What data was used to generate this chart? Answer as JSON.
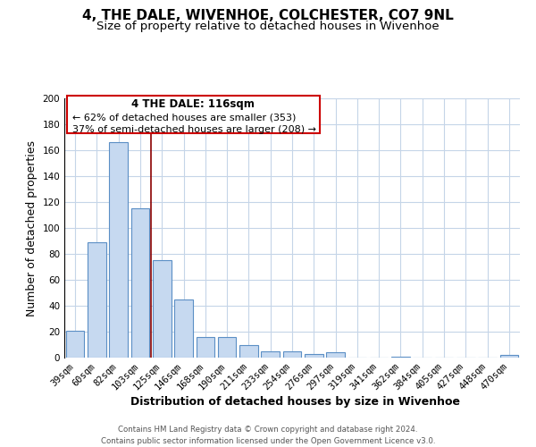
{
  "title": "4, THE DALE, WIVENHOE, COLCHESTER, CO7 9NL",
  "subtitle": "Size of property relative to detached houses in Wivenhoe",
  "xlabel": "Distribution of detached houses by size in Wivenhoe",
  "ylabel": "Number of detached properties",
  "bar_labels": [
    "39sqm",
    "60sqm",
    "82sqm",
    "103sqm",
    "125sqm",
    "146sqm",
    "168sqm",
    "190sqm",
    "211sqm",
    "233sqm",
    "254sqm",
    "276sqm",
    "297sqm",
    "319sqm",
    "341sqm",
    "362sqm",
    "384sqm",
    "405sqm",
    "427sqm",
    "448sqm",
    "470sqm"
  ],
  "bar_values": [
    21,
    89,
    166,
    115,
    75,
    45,
    16,
    16,
    10,
    5,
    5,
    3,
    4,
    0,
    0,
    1,
    0,
    0,
    0,
    0,
    2
  ],
  "bar_color": "#c6d9f0",
  "bar_edge_color": "#5b8fc5",
  "annotation_text1": "4 THE DALE: 116sqm",
  "annotation_text2": "← 62% of detached houses are smaller (353)",
  "annotation_text3": "37% of semi-detached houses are larger (208) →",
  "annotation_box_color": "#ffffff",
  "annotation_box_edge_color": "#cc0000",
  "vline_color": "#8b0000",
  "vline_x": 3.5,
  "ylim": [
    0,
    200
  ],
  "yticks": [
    0,
    20,
    40,
    60,
    80,
    100,
    120,
    140,
    160,
    180,
    200
  ],
  "footer1": "Contains HM Land Registry data © Crown copyright and database right 2024.",
  "footer2": "Contains public sector information licensed under the Open Government Licence v3.0.",
  "bg_color": "#ffffff",
  "grid_color": "#c5d5e8",
  "title_fontsize": 11,
  "subtitle_fontsize": 9.5,
  "tick_fontsize": 7.5,
  "xlabel_fontsize": 9,
  "ylabel_fontsize": 9
}
